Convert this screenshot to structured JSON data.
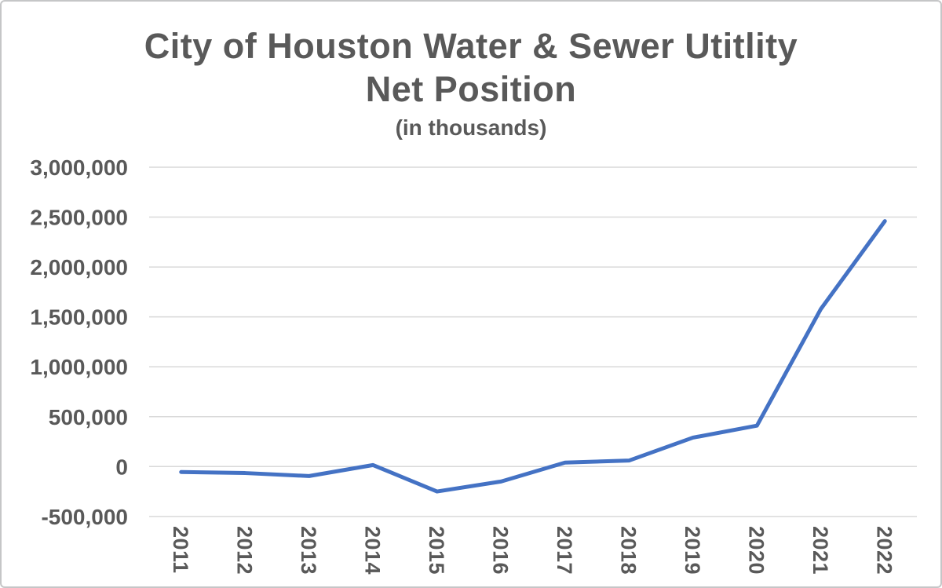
{
  "chart_data": {
    "type": "line",
    "title": "City of Houston Water & Sewer Utitlity",
    "title_line2": "Net Position",
    "subtitle": "(in thousands)",
    "categories": [
      "2011",
      "2012",
      "2013",
      "2014",
      "2015",
      "2016",
      "2017",
      "2018",
      "2019",
      "2020",
      "2021",
      "2022"
    ],
    "series": [
      {
        "name": "Net Position",
        "values": [
          -55000,
          -65000,
          -95000,
          15000,
          -250000,
          -150000,
          40000,
          60000,
          290000,
          410000,
          1580000,
          2460000
        ]
      }
    ],
    "xlabel": "",
    "ylabel": "",
    "ylim": [
      -500000,
      3000000
    ],
    "y_tick_step": 500000,
    "y_tick_labels": [
      "3,000,000",
      "2,500,000",
      "2,000,000",
      "1,500,000",
      "1,000,000",
      "500,000",
      "0",
      "-500,000"
    ],
    "grid": true,
    "legend": "none",
    "colors": {
      "line": "#4472C4",
      "gridline": "#D9D9D9",
      "text": "#595959",
      "border": "#C5C6C7",
      "background": "#FFFFFF"
    }
  }
}
